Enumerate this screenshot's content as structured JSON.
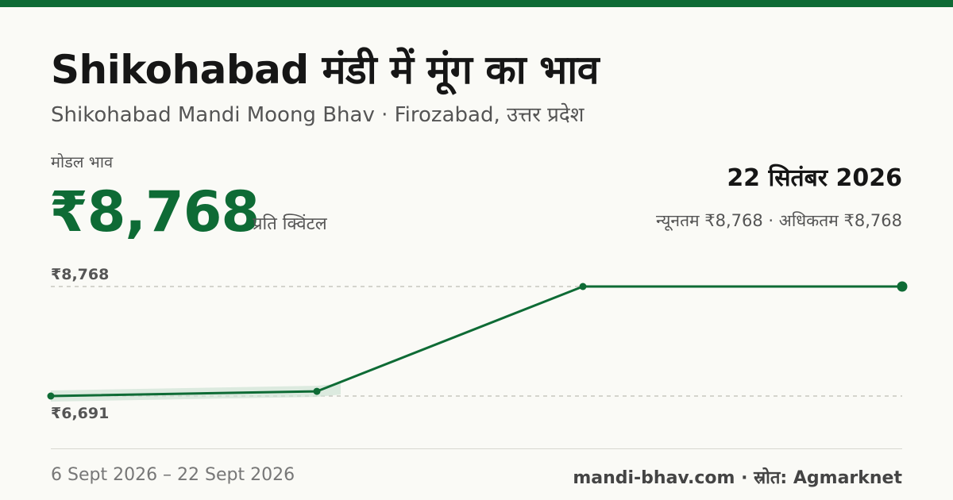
{
  "header": {
    "title": "Shikohabad मंडी में मूंग का भाव",
    "subtitle": "Shikohabad Mandi Moong Bhav · Firozabad, उत्तर प्रदेश"
  },
  "price": {
    "label": "मोडल भाव",
    "value": "₹8,768",
    "unit": "प्रति क्विंटल"
  },
  "summary": {
    "date": "22 सितंबर 2026",
    "range": "न्यूनतम ₹8,768 · अधिकतम ₹8,768"
  },
  "footer": {
    "period": "6 Sept 2026 – 22 Sept 2026",
    "source": "mandi-bhav.com · स्रोत: Agmarknet"
  },
  "colors": {
    "accent": "#0e6b35",
    "band": "#cfe3d5",
    "grid": "#bdbdb5"
  },
  "chart_data": {
    "type": "line",
    "x": [
      "2026-09-06",
      "2026-09-11",
      "2026-09-16",
      "2026-09-22"
    ],
    "series": [
      {
        "values": [
          6691,
          6780,
          8768,
          8768
        ]
      }
    ],
    "ylim": [
      6691,
      8768
    ],
    "reference_lines": [
      {
        "value": 8768,
        "label": "₹8,768"
      },
      {
        "value": 6691,
        "label": "₹6,691"
      }
    ],
    "grid": false,
    "legend": "none"
  }
}
